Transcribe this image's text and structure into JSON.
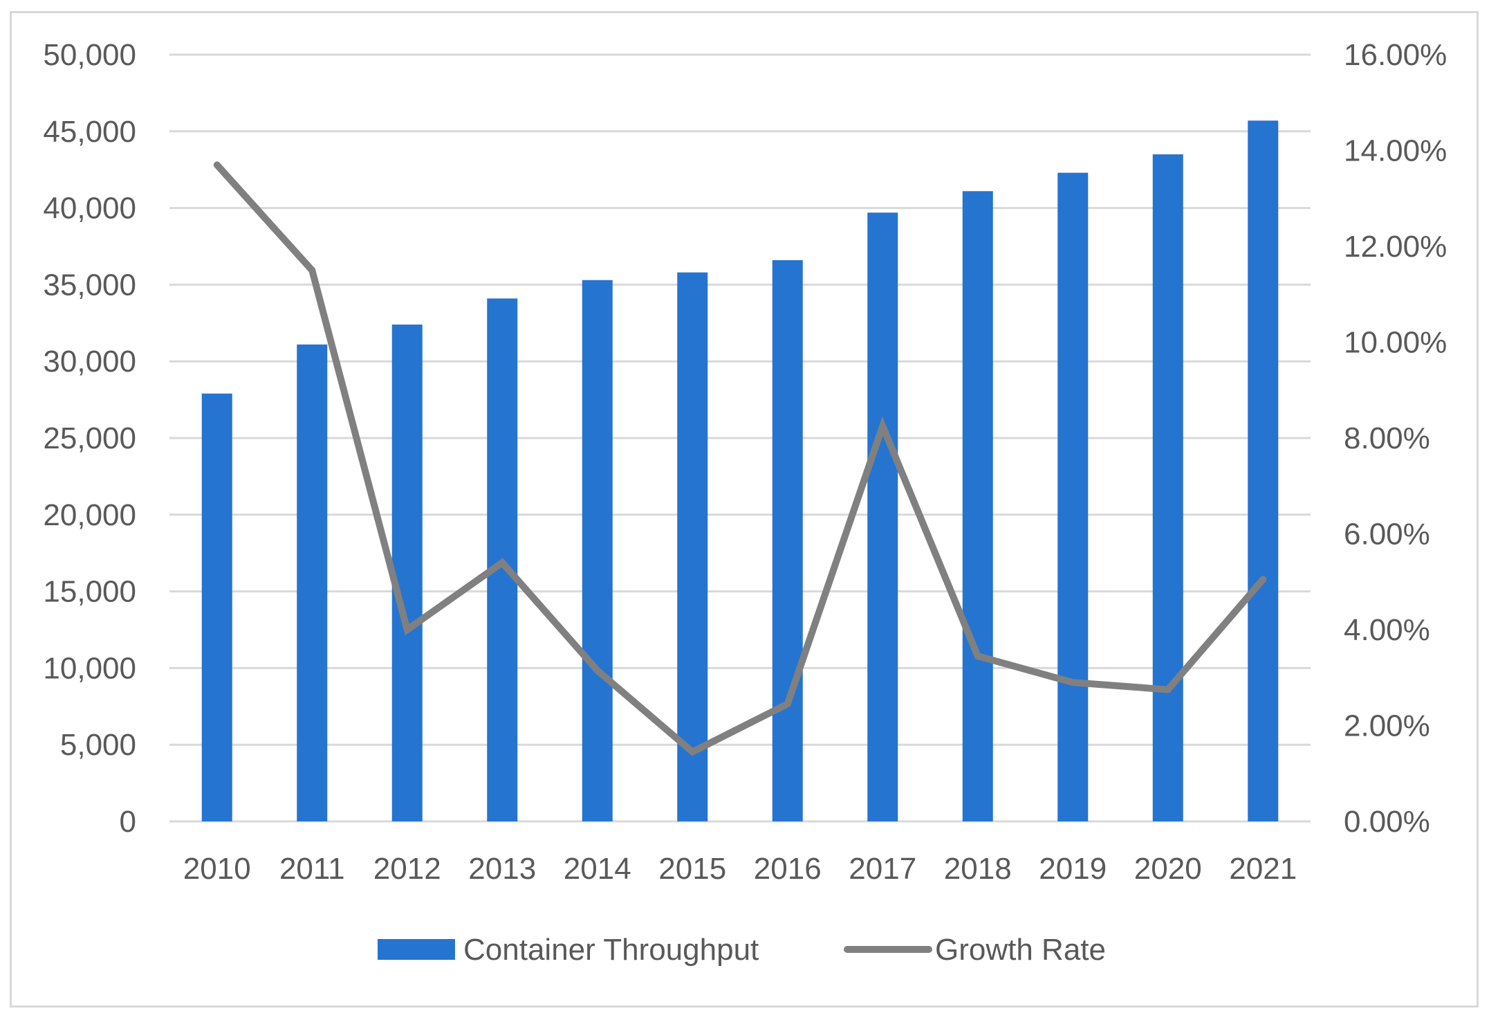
{
  "chart_data": {
    "type": "bar+line",
    "title": "",
    "categories": [
      "2010",
      "2011",
      "2012",
      "2013",
      "2014",
      "2015",
      "2016",
      "2017",
      "2018",
      "2019",
      "2020",
      "2021"
    ],
    "series": [
      {
        "name": "Container Throughput",
        "type": "bar",
        "axis": "left",
        "color": "#2574D0",
        "values": [
          27900,
          31100,
          32400,
          34100,
          35300,
          35800,
          36600,
          39700,
          41100,
          42300,
          43500,
          45700
        ]
      },
      {
        "name": "Growth Rate",
        "type": "line",
        "axis": "right",
        "color": "#808080",
        "values": [
          0.137,
          0.115,
          0.04,
          0.054,
          0.0315,
          0.0145,
          0.0245,
          0.0825,
          0.0345,
          0.029,
          0.0275,
          0.0505
        ]
      }
    ],
    "y_left": {
      "min": 0,
      "max": 50000,
      "ticks": [
        0,
        5000,
        10000,
        15000,
        20000,
        25000,
        30000,
        35000,
        40000,
        45000,
        50000
      ],
      "tick_labels": [
        "0",
        "5,000",
        "10,000",
        "15,000",
        "20,000",
        "25,000",
        "30,000",
        "35,000",
        "40,000",
        "45,000",
        "50,000"
      ]
    },
    "y_right": {
      "min": 0,
      "max": 0.16,
      "ticks": [
        0,
        0.02,
        0.04,
        0.06,
        0.08,
        0.1,
        0.12,
        0.14,
        0.16
      ],
      "tick_labels": [
        "0.00%",
        "2.00%",
        "4.00%",
        "6.00%",
        "8.00%",
        "10.00%",
        "12.00%",
        "14.00%",
        "16.00%"
      ]
    },
    "grid": true,
    "legend": {
      "position": "bottom",
      "items": [
        "Container Throughput",
        "Growth Rate"
      ]
    },
    "colors": {
      "gridline": "#d9d9d9",
      "text": "#595959",
      "bar": "#2574D0",
      "line": "#808080"
    }
  }
}
